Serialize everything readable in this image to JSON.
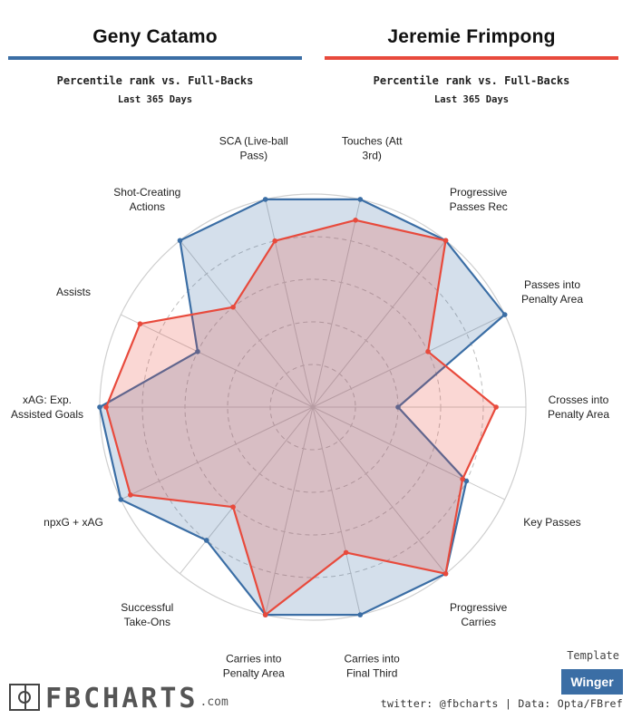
{
  "header": {
    "player1": {
      "name": "Geny Catamo",
      "color": "#3b6ea5"
    },
    "player2": {
      "name": "Jeremie Frimpong",
      "color": "#e84a3c"
    },
    "subtitle": "Percentile rank vs. Full-Backs",
    "period": "Last 365 Days"
  },
  "chart_data": {
    "type": "radar",
    "range": [
      0,
      100
    ],
    "grid_levels": [
      20,
      40,
      60,
      80,
      100
    ],
    "categories": [
      [
        "Touches (Att",
        "3rd)"
      ],
      [
        "Progressive",
        "Passes Rec"
      ],
      [
        "Passes into",
        "Penalty Area"
      ],
      [
        "Crosses into",
        "Penalty Area"
      ],
      [
        "Key Passes"
      ],
      [
        "Progressive",
        "Carries"
      ],
      [
        "Carries into",
        "Final Third"
      ],
      [
        "Carries into",
        "Penalty Area"
      ],
      [
        "Successful",
        "Take-Ons"
      ],
      [
        "npxG + xAG"
      ],
      [
        "xAG: Exp.",
        "Assisted Goals"
      ],
      [
        "Assists"
      ],
      [
        "Shot-Creating",
        "Actions"
      ],
      [
        "SCA (Live-ball",
        "Pass)"
      ]
    ],
    "series": [
      {
        "name": "Geny Catamo",
        "color": "#3b6ea5",
        "values": [
          100,
          100,
          100,
          40,
          80,
          100,
          100,
          100,
          80,
          100,
          100,
          60,
          100,
          100
        ]
      },
      {
        "name": "Jeremie Frimpong",
        "color": "#e84a3c",
        "values": [
          90,
          100,
          60,
          86,
          78,
          100,
          70,
          100,
          60,
          95,
          97,
          90,
          60,
          80
        ]
      }
    ]
  },
  "footer": {
    "template_label": "Template",
    "template_value": "Winger",
    "template_color": "#3b6ea5",
    "credits": "twitter: @fbcharts | Data: Opta/FBref",
    "logo_text": "FBCHARTS",
    "logo_domain": ".com"
  }
}
